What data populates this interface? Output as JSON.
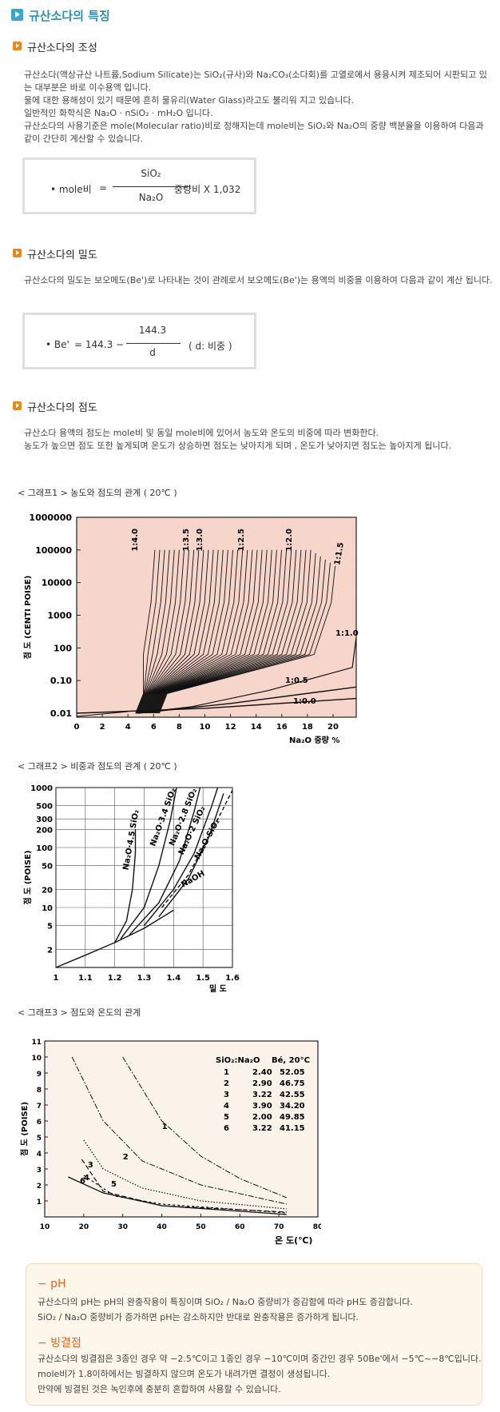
{
  "header": {
    "title": "규산소다의 특징"
  },
  "sections": [
    {
      "title": "규산소다의 조성",
      "paragraphs": [
        "규산소다(액상규산 나트륨,Sodium Silicate)는 SiO₂(규사)와 Na₂CO₃(소다회)를 고열로에서 용융시켜 제조되어 시판되고 있는 대부분은 바로 이수용액 입니다.",
        "물에 대한 용해성이 있기 때문에 흔히 물유리(Water Glass)라고도 불리워 지고 있습니다.",
        "일반적인 화학식은 Na₂O · nSiO₂ · mH₂O 입니다.",
        "규산소다의 사용기준은 mole(Molecular ratio)비로 정해지는데 mole비는 SiO₂와 Na₂O의 중량 백분율을 이용하여 다음과 같이 간단히 계산할 수 있습니다."
      ],
      "formula": {
        "lead": "• mole비",
        "middle": "=",
        "numerator": "SiO₂",
        "denominator": "Na₂O",
        "tail": "중량비 X 1,032"
      }
    },
    {
      "title": "규산소다의 밀도",
      "paragraphs": [
        "규산소다의 밀도는 보오메도(Be')로 나타내는 것이 관례로서 보오메도(Be')는 용액의 비중을 이용하여 다음과 같이 계산 됩니다."
      ],
      "formula": {
        "lead": "• Be'",
        "middle": "= 144.3 −",
        "numerator": "144.3",
        "denominator": "d",
        "tail": "( d: 비중 )"
      }
    },
    {
      "title": "규산소다의 점도",
      "paragraphs": [
        "규산소다 용액의 점도는 mole비 및 동일 mole비에 있어서 농도와 온도의 비중에 따라 변화한다.",
        "농도가 높으면 점도 또한 높게되며 온도가 상승하면 점도는 낮아지게 되며 , 온도가 낮아지면 점도는 높아지게 됩니다."
      ]
    }
  ],
  "graphs": [
    {
      "caption": "< 그래프1 > 농도와 점도의 관계 ( 20℃ )",
      "y_label": "점 도 (CENTI POISE)",
      "x_label": "Na₂O 중량 %",
      "y_ticks": [
        "1000000",
        "100000",
        "10000",
        "1000",
        "100",
        "0.10",
        "0.01"
      ],
      "x_ticks": [
        "0",
        "2",
        "4",
        "6",
        "8",
        "10",
        "12",
        "14",
        "16",
        "18",
        "20"
      ],
      "curve_labels": [
        "1:4.0",
        "1:3.5",
        "1:3.0",
        "1:2.5",
        "1:2.0",
        "1:1.5",
        "1:1.0",
        "1:0.5",
        "1:0.0"
      ]
    },
    {
      "caption": "< 그래프2 > 비중과 점도의 관계 ( 20℃ )",
      "y_label": "점 도 (POISE)",
      "x_label": "밀 도",
      "y_ticks": [
        "1000",
        "500",
        "300",
        "200",
        "100",
        "50",
        "20",
        "10",
        "5",
        "2"
      ],
      "x_ticks": [
        "1",
        "1.1",
        "1.2",
        "1.3",
        "1.4",
        "1.5",
        "1.6"
      ],
      "curve_labels": [
        "Na₂O·4.5 SiO₂",
        "Na₂O·3.4 SiO₂",
        "Na₂O·2.8 SiO₂",
        "Na₂O·2 SiO₂",
        "Na₂O·SiO₂",
        "NaOH"
      ]
    },
    {
      "caption": "< 그래프3 > 점도와 온도의 관계",
      "y_label": "점 도 (POISE)",
      "x_label": "온 도(℃)",
      "y_ticks": [
        "11",
        "10",
        "9",
        "8",
        "7",
        "6",
        "5",
        "4",
        "3",
        "2",
        "1"
      ],
      "x_ticks": [
        "10",
        "20",
        "30",
        "40",
        "50",
        "60",
        "70",
        "80"
      ],
      "curve_labels": [
        "1",
        "2",
        "3",
        "4",
        "5",
        "6"
      ],
      "table": {
        "headers": [
          "SiO₂:Na₂O",
          "Bé, 20°C"
        ],
        "rows": [
          [
            "1",
            "2.40",
            "52.05"
          ],
          [
            "2",
            "2.90",
            "46.75"
          ],
          [
            "3",
            "3.22",
            "42.55"
          ],
          [
            "4",
            "3.90",
            "34.20"
          ],
          [
            "5",
            "2.00",
            "49.85"
          ],
          [
            "6",
            "3.22",
            "41.15"
          ]
        ]
      }
    }
  ],
  "notes": [
    {
      "heading": "− pH",
      "lines": [
        "규산소다의 pH는 pH의 완충작용이 특징이며 SiO₂ / Na₂O 중량비가 증감함에 따라 pH도 증감합니다.",
        "SiO₂ / Na₂O 중량비가 증가하면 pH는 감소하지만 반대로 완충작용은 증가하게 됩니다."
      ]
    },
    {
      "heading": "− 빙결점",
      "lines": [
        "규산소다의 빙결점은 3종인 경우 약 −2.5℃이고 1종인 경우 −10℃이며 중간인 경우 50Be'에서 −5℃~−8℃입니다.",
        "mole비가 1.8이하에서는 빙결하지 않으며 온도가 내려가면 결정이 생성됩니다.",
        "만약에 빙결된 것은 녹인후에 충분히 혼합하여 사용할 수 있습니다."
      ]
    }
  ]
}
